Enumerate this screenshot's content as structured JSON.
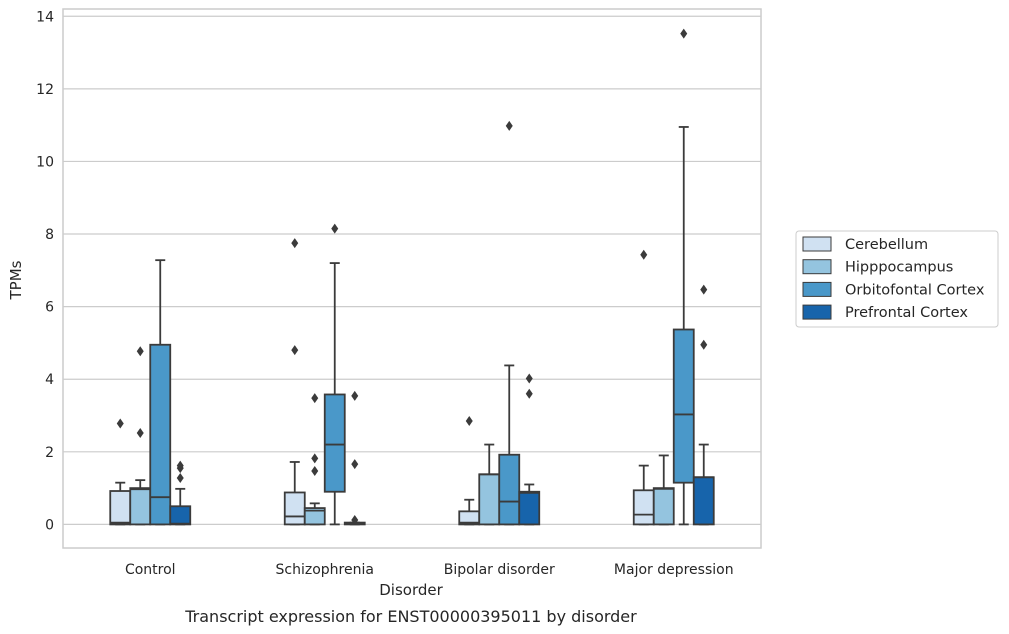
{
  "caption": "Transcript expression for ENST00000395011 by disorder",
  "chart_data": {
    "type": "box",
    "title": "",
    "xlabel": "Disorder",
    "ylabel": "TPMs",
    "ylim": [
      -0.65,
      14.2
    ],
    "yticks": [
      0,
      2,
      4,
      6,
      8,
      10,
      12,
      14
    ],
    "grid": "horizontal",
    "legend_position": "right",
    "categories": [
      "Control",
      "Schizophrenia",
      "Bipolar disorder",
      "Major depression"
    ],
    "series": [
      {
        "name": "Cerebellum",
        "color": "#d0e1f2",
        "boxes": [
          {
            "whisker_low": 0,
            "q1": 0,
            "median": 0.05,
            "q3": 0.92,
            "whisker_high": 1.15,
            "outliers": [
              2.78
            ]
          },
          {
            "whisker_low": 0,
            "q1": 0,
            "median": 0.22,
            "q3": 0.88,
            "whisker_high": 1.72,
            "outliers": [
              4.8,
              7.75
            ]
          },
          {
            "whisker_low": 0,
            "q1": 0,
            "median": 0.05,
            "q3": 0.36,
            "whisker_high": 0.68,
            "outliers": [
              2.85
            ]
          },
          {
            "whisker_low": 0,
            "q1": 0,
            "median": 0.27,
            "q3": 0.94,
            "whisker_high": 1.62,
            "outliers": [
              7.43
            ]
          }
        ]
      },
      {
        "name": "Hipppocampus",
        "color": "#94c4df",
        "boxes": [
          {
            "whisker_low": 0,
            "q1": 0,
            "median": 0.97,
            "q3": 1.0,
            "whisker_high": 1.22,
            "outliers": [
              2.52,
              4.77
            ]
          },
          {
            "whisker_low": 0,
            "q1": 0,
            "median": 0.38,
            "q3": 0.45,
            "whisker_high": 0.58,
            "outliers": [
              1.47,
              1.82,
              3.48
            ]
          },
          {
            "whisker_low": 0,
            "q1": 0,
            "median": 1.38,
            "q3": 1.38,
            "whisker_high": 2.2,
            "outliers": []
          },
          {
            "whisker_low": 0,
            "q1": 0,
            "median": 0.98,
            "q3": 1.0,
            "whisker_high": 1.9,
            "outliers": []
          }
        ]
      },
      {
        "name": "Orbitofontal Cortex",
        "color": "#4a98c9",
        "boxes": [
          {
            "whisker_low": 0,
            "q1": 0,
            "median": 0.75,
            "q3": 4.95,
            "whisker_high": 7.28,
            "outliers": []
          },
          {
            "whisker_low": 0,
            "q1": 0.9,
            "median": 2.2,
            "q3": 3.58,
            "whisker_high": 7.2,
            "outliers": [
              8.15
            ]
          },
          {
            "whisker_low": 0,
            "q1": 0,
            "median": 0.63,
            "q3": 1.92,
            "whisker_high": 4.38,
            "outliers": [
              10.98
            ]
          },
          {
            "whisker_low": 0,
            "q1": 1.15,
            "median": 3.03,
            "q3": 5.37,
            "whisker_high": 10.95,
            "outliers": [
              13.52
            ]
          }
        ]
      },
      {
        "name": "Prefrontal Cortex",
        "color": "#1764ab",
        "boxes": [
          {
            "whisker_low": 0,
            "q1": 0,
            "median": 0.02,
            "q3": 0.5,
            "whisker_high": 0.98,
            "outliers": [
              1.28,
              1.55,
              1.62
            ]
          },
          {
            "whisker_low": 0,
            "q1": 0,
            "median": 0.02,
            "q3": 0.05,
            "whisker_high": 0.05,
            "outliers": [
              0.12,
              1.66,
              3.54
            ]
          },
          {
            "whisker_low": 0,
            "q1": 0,
            "median": 0.87,
            "q3": 0.9,
            "whisker_high": 1.1,
            "outliers": [
              3.6,
              4.02
            ]
          },
          {
            "whisker_low": 0,
            "q1": 0,
            "median": 1.3,
            "q3": 1.3,
            "whisker_high": 2.2,
            "outliers": [
              4.95,
              6.47
            ]
          }
        ]
      }
    ]
  }
}
